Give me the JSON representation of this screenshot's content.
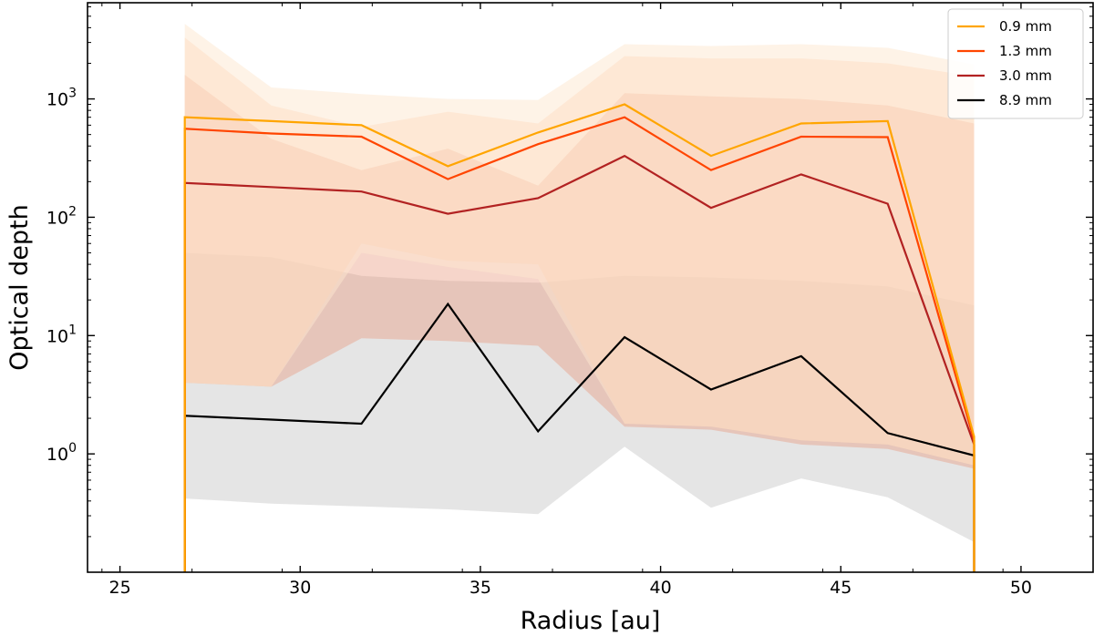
{
  "chart_data": {
    "type": "line",
    "xlabel": "Radius [au]",
    "ylabel": "Optical depth",
    "xlim": [
      24.1,
      52.0
    ],
    "ylim": [
      0.1,
      6500
    ],
    "yscale": "log",
    "grid": false,
    "legend_position": "top-right",
    "x_ticks": [
      25,
      30,
      35,
      40,
      45,
      50
    ],
    "x_tick_labels": [
      "25",
      "30",
      "35",
      "40",
      "45",
      "50"
    ],
    "y_ticks": [
      1,
      10,
      100,
      1000
    ],
    "y_tick_labels": [
      {
        "base": "10",
        "exp": "0"
      },
      {
        "base": "10",
        "exp": "1"
      },
      {
        "base": "10",
        "exp": "2"
      },
      {
        "base": "10",
        "exp": "3"
      }
    ],
    "x": [
      26.8,
      29.2,
      31.7,
      34.1,
      36.6,
      39.0,
      41.4,
      43.9,
      46.3,
      48.7
    ],
    "series": [
      {
        "name": "8.9 mm",
        "color": "#000000",
        "values": [
          2.1,
          1.95,
          1.8,
          18.5,
          1.55,
          9.7,
          3.5,
          6.7,
          1.5,
          0.97
        ],
        "band_upper": [
          50,
          46,
          32,
          29,
          28,
          32,
          31,
          29,
          26,
          18
        ],
        "band_lower": [
          0.42,
          0.38,
          0.36,
          0.34,
          0.31,
          1.15,
          0.35,
          0.62,
          0.43,
          0.18
        ],
        "band_color": "#d4d4d4",
        "band_opacity": 0.6
      },
      {
        "name": "3.0 mm",
        "color": "#b22222",
        "values": [
          195,
          180,
          165,
          107,
          145,
          330,
          120,
          230,
          130,
          1.2
        ],
        "band_upper": [
          1600,
          460,
          250,
          380,
          185,
          1120,
          1050,
          1000,
          880,
          620
        ],
        "band_lower": [
          4.0,
          3.7,
          9.5,
          9.0,
          8.2,
          1.7,
          1.6,
          1.2,
          1.1,
          0.75
        ],
        "band_color": "#e8967a",
        "band_opacity": 0.4
      },
      {
        "name": "1.3 mm",
        "color": "#ff4500",
        "values": [
          560,
          510,
          480,
          210,
          415,
          700,
          250,
          480,
          475,
          1.3
        ],
        "band_upper": [
          3300,
          880,
          580,
          780,
          620,
          2300,
          2200,
          2200,
          2000,
          1550
        ],
        "band_lower": [
          4.0,
          3.7,
          60,
          43,
          40,
          1.8,
          1.7,
          1.3,
          1.2,
          0.8
        ],
        "band_color": "#fbbf99",
        "band_opacity": 0.35
      },
      {
        "name": "0.9 mm",
        "color": "#ffa500",
        "values": [
          700,
          650,
          600,
          270,
          520,
          900,
          330,
          620,
          650,
          1.4
        ],
        "band_upper": [
          4300,
          1250,
          1100,
          1000,
          980,
          2900,
          2800,
          2900,
          2700,
          1950
        ],
        "band_lower": [
          4.0,
          3.7,
          50,
          38,
          30,
          1.8,
          1.7,
          1.3,
          1.2,
          0.8
        ],
        "band_color": "#fde8cf",
        "band_opacity": 0.5
      }
    ],
    "legend_order": [
      "0.9 mm",
      "1.3 mm",
      "3.0 mm",
      "8.9 mm"
    ]
  }
}
